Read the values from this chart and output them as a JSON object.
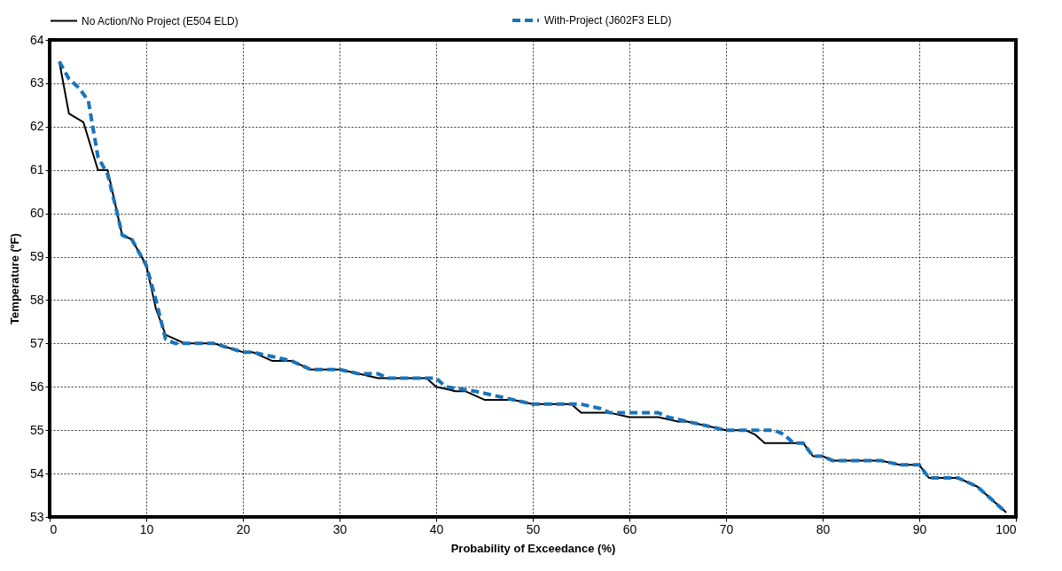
{
  "chart_data": {
    "type": "line",
    "xlabel": "Probability of Exceedance (%)",
    "ylabel": "Temperature (ºF)",
    "xlim": [
      0,
      100
    ],
    "xticks": [
      0,
      10,
      20,
      30,
      40,
      50,
      60,
      70,
      80,
      90,
      100
    ],
    "ylim": [
      53,
      64
    ],
    "yticks": [
      53,
      54,
      55,
      56,
      57,
      58,
      59,
      60,
      61,
      62,
      63,
      64
    ],
    "grid": true,
    "legend": "top",
    "marker": "none",
    "series": [
      {
        "name": "No Action/No Project (E504 ELD)",
        "color": "#000000",
        "line_style": "solid",
        "x": [
          1,
          2,
          3.5,
          5,
          6,
          7.5,
          8.5,
          10,
          11,
          12,
          14,
          17,
          20,
          21,
          23,
          25,
          27,
          30,
          32,
          34,
          39,
          40,
          42,
          43,
          45,
          48,
          50,
          54,
          55,
          58,
          60,
          63,
          65,
          66,
          68,
          70,
          72,
          73,
          74,
          78,
          79,
          80,
          81,
          86,
          88,
          90,
          91,
          94,
          96,
          97,
          98,
          99
        ],
        "values": [
          63.5,
          62.3,
          62.1,
          61,
          61,
          59.5,
          59.4,
          58.8,
          57.8,
          57.2,
          57,
          57,
          56.8,
          56.8,
          56.6,
          56.6,
          56.4,
          56.4,
          56.3,
          56.2,
          56.2,
          56,
          55.9,
          55.9,
          55.7,
          55.7,
          55.6,
          55.6,
          55.4,
          55.4,
          55.3,
          55.3,
          55.2,
          55.2,
          55.1,
          55,
          55,
          54.9,
          54.7,
          54.7,
          54.4,
          54.4,
          54.3,
          54.3,
          54.2,
          54.2,
          53.9,
          53.9,
          53.7,
          53.5,
          53.3,
          53.1
        ]
      },
      {
        "name": "With-Project (J602F3 ELD)",
        "color": "#1a73bb",
        "line_style": "dashed",
        "x": [
          1,
          2,
          3,
          4,
          5,
          6,
          7,
          7.5,
          8.5,
          10,
          11,
          12,
          13,
          17,
          20,
          21,
          23,
          25,
          27,
          30,
          32,
          34,
          35,
          40,
          41,
          44,
          46,
          48,
          50,
          55,
          57,
          58,
          60,
          63,
          64,
          66,
          68,
          70,
          72,
          75,
          76,
          77,
          78,
          79,
          80,
          81,
          86,
          88,
          90,
          91,
          94,
          96,
          97,
          98,
          99
        ],
        "values": [
          63.5,
          63.1,
          62.9,
          62.6,
          61.3,
          60.9,
          60,
          59.5,
          59.4,
          58.8,
          58,
          57.1,
          57,
          57,
          56.8,
          56.8,
          56.7,
          56.6,
          56.4,
          56.4,
          56.3,
          56.3,
          56.2,
          56.2,
          56,
          55.9,
          55.8,
          55.7,
          55.6,
          55.6,
          55.5,
          55.4,
          55.4,
          55.4,
          55.3,
          55.2,
          55.1,
          55,
          55,
          55,
          54.9,
          54.7,
          54.7,
          54.4,
          54.4,
          54.3,
          54.3,
          54.2,
          54.2,
          53.9,
          53.9,
          53.7,
          53.5,
          53.3,
          53.1
        ]
      }
    ]
  }
}
